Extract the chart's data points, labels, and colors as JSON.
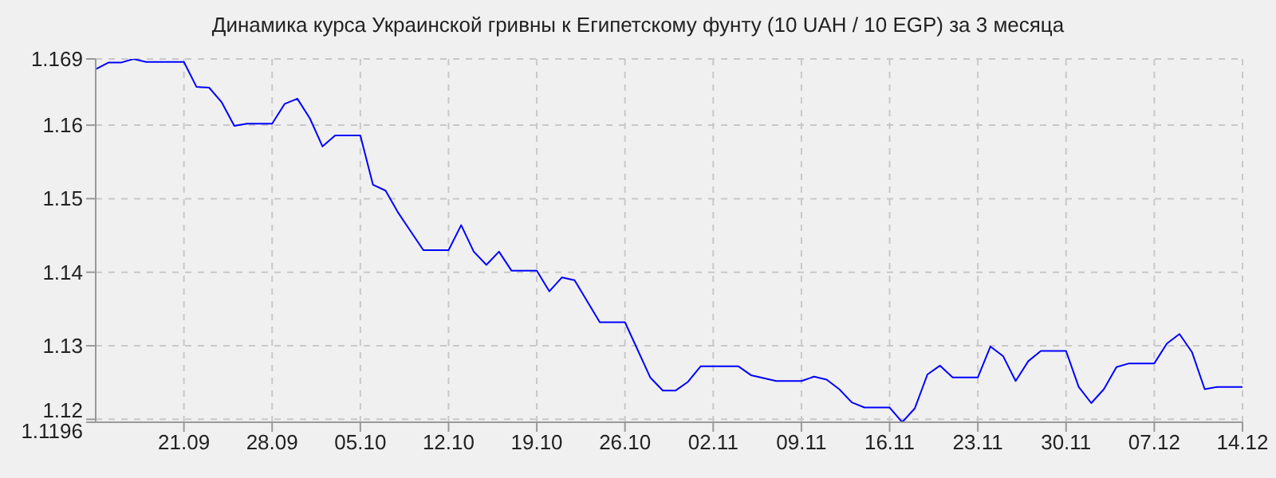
{
  "chart_data": {
    "type": "line",
    "title": "Динамика курса Украинской гривны к Египетскому фунту (10 UAH / 10 EGP) за 3 месяца",
    "x": [
      "--09-14",
      "--09-15",
      "--09-16",
      "--09-17",
      "--09-18",
      "--09-21",
      "--09-22",
      "--09-23",
      "--09-24",
      "--09-25",
      "--09-26",
      "--09-28",
      "--09-29",
      "--09-30",
      "--10-01",
      "--10-02",
      "--10-03",
      "--10-05",
      "--10-06",
      "--10-07",
      "--10-08",
      "--10-10",
      "--10-12",
      "--10-13",
      "--10-14",
      "--10-15",
      "--10-16",
      "--10-17",
      "--10-19",
      "--10-20",
      "--10-21",
      "--10-22",
      "--10-24",
      "--10-26",
      "--10-28",
      "--10-29",
      "--10-30",
      "--10-31",
      "--11-01",
      "--11-04",
      "--11-05",
      "--11-07",
      "--11-09",
      "--11-10",
      "--11-11",
      "--11-12",
      "--11-13",
      "--11-14",
      "--11-16",
      "--11-17",
      "--11-18",
      "--11-19",
      "--11-20",
      "--11-21",
      "--11-23",
      "--11-24",
      "--11-25",
      "--11-26",
      "--11-27",
      "--11-28",
      "--11-30",
      "--12-01",
      "--12-02",
      "--12-03",
      "--12-04",
      "--12-05",
      "--12-07",
      "--12-08",
      "--12-09",
      "--12-10",
      "--12-11",
      "--12-12",
      "--12-14"
    ],
    "series": [
      {
        "color": "#0000ff",
        "values": [
          1.1676,
          1.1685,
          1.1685,
          1.169,
          1.1686,
          1.1686,
          1.1652,
          1.1651,
          1.1631,
          1.1599,
          1.1602,
          1.1602,
          1.1629,
          1.1636,
          1.1609,
          1.1571,
          1.1586,
          1.1586,
          1.1519,
          1.1511,
          1.1481,
          1.143,
          1.143,
          1.1464,
          1.1428,
          1.141,
          1.1428,
          1.1402,
          1.1402,
          1.1374,
          1.1393,
          1.1389,
          1.1332,
          1.1332,
          1.1257,
          1.1239,
          1.1239,
          1.1251,
          1.1272,
          1.1272,
          1.126,
          1.1252,
          1.1252,
          1.1258,
          1.1254,
          1.1241,
          1.1223,
          1.1216,
          1.1216,
          1.1196,
          1.1215,
          1.1261,
          1.1273,
          1.1257,
          1.1257,
          1.1299,
          1.1286,
          1.1252,
          1.1279,
          1.1293,
          1.1293,
          1.1244,
          1.1222,
          1.1241,
          1.1271,
          1.1276,
          1.1276,
          1.1303,
          1.1316,
          1.1291,
          1.1241,
          1.1244,
          1.1244
        ]
      }
    ],
    "xlim": [
      "--09-14",
      "--12-14"
    ],
    "xticks": [
      {
        "value": "--09-21",
        "label": "21.09"
      },
      {
        "value": "--09-28",
        "label": "28.09"
      },
      {
        "value": "--10-05",
        "label": "05.10"
      },
      {
        "value": "--10-12",
        "label": "12.10"
      },
      {
        "value": "--10-19",
        "label": "19.10"
      },
      {
        "value": "--10-26",
        "label": "26.10"
      },
      {
        "value": "--11-02",
        "label": "02.11"
      },
      {
        "value": "--11-09",
        "label": "09.11"
      },
      {
        "value": "--11-16",
        "label": "16.11"
      },
      {
        "value": "--11-23",
        "label": "23.11"
      },
      {
        "value": "--11-30",
        "label": "30.11"
      },
      {
        "value": "--12-07",
        "label": "07.12"
      },
      {
        "value": "--12-14",
        "label": "14.12"
      }
    ],
    "ylim": [
      1.1196,
      1.169
    ],
    "yticks": [
      1.1196,
      1.12,
      1.13,
      1.14,
      1.15,
      1.16,
      1.169
    ],
    "grid": true,
    "marker": "none",
    "line_style": "solid"
  }
}
